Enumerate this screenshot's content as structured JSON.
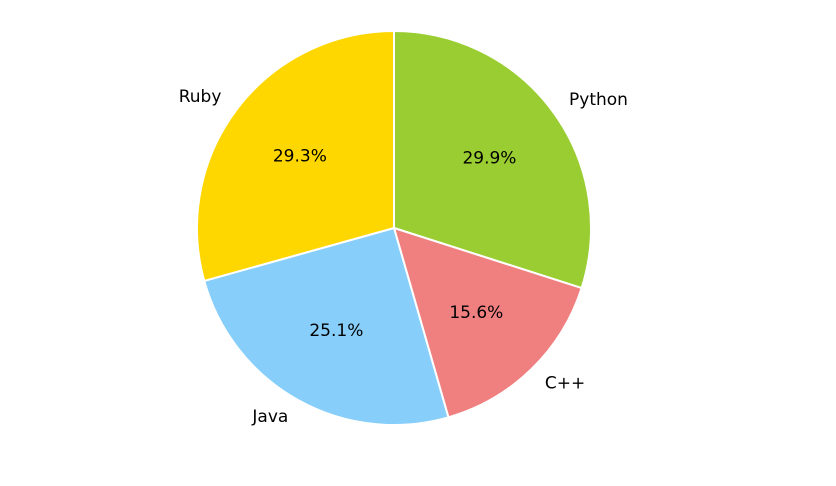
{
  "chart_data": {
    "type": "pie",
    "categories": [
      "Python",
      "C++",
      "Java",
      "Ruby"
    ],
    "values": [
      29.9,
      15.6,
      25.1,
      29.3
    ],
    "value_labels": [
      "29.9%",
      "15.6%",
      "25.1%",
      "29.3%"
    ],
    "colors": [
      "#9acd32",
      "#f08080",
      "#87cefa",
      "#ffd700"
    ]
  }
}
